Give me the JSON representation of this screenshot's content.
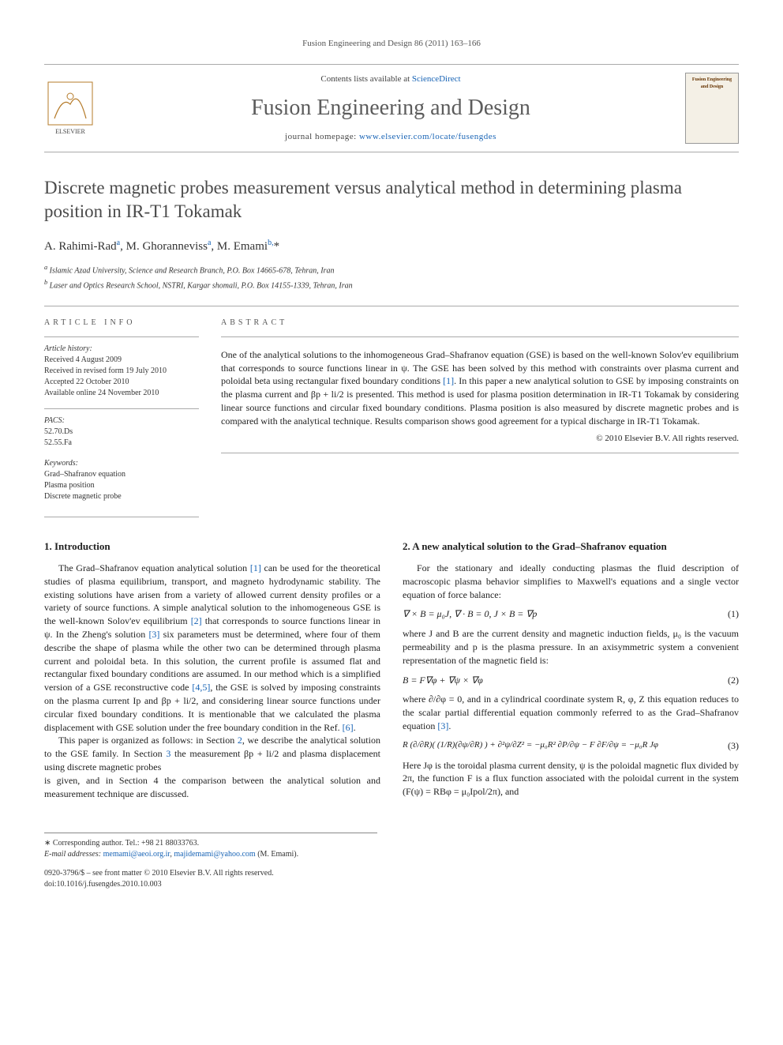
{
  "running_head": "Fusion Engineering and Design 86 (2011) 163–166",
  "masthead": {
    "contents_prefix": "Contents lists available at ",
    "contents_link": "ScienceDirect",
    "journal": "Fusion Engineering and Design",
    "homepage_prefix": "journal homepage: ",
    "homepage_link": "www.elsevier.com/locate/fusengdes",
    "publisher_logo_label": "ELSEVIER",
    "cover_title": "Fusion Engineering and Design"
  },
  "title": "Discrete magnetic probes measurement versus analytical method in determining plasma position in IR-T1 Tokamak",
  "authors_html": "A. Rahimi-Rad<sup class='author-link'>a</sup>, M. Ghoranneviss<sup class='author-link'>a</sup>, M. Emami<sup class='author-link'>b,</sup>*",
  "affiliations": {
    "a": "Islamic Azad University, Science and Research Branch, P.O. Box 14665-678, Tehran, Iran",
    "b": "Laser and Optics Research School, NSTRI, Kargar shomali, P.O. Box 14155-1339, Tehran, Iran"
  },
  "article_info": {
    "head": "ARTICLE INFO",
    "history_label": "Article history:",
    "history": [
      "Received 4 August 2009",
      "Received in revised form 19 July 2010",
      "Accepted 22 October 2010",
      "Available online 24 November 2010"
    ],
    "pacs_label": "PACS:",
    "pacs": [
      "52.70.Ds",
      "52.55.Fa"
    ],
    "keywords_label": "Keywords:",
    "keywords": [
      "Grad–Shafranov equation",
      "Plasma position",
      "Discrete magnetic probe"
    ]
  },
  "abstract": {
    "head": "ABSTRACT",
    "text": "One of the analytical solutions to the inhomogeneous Grad–Shafranov equation (GSE) is based on the well-known Solov'ev equilibrium that corresponds to source functions linear in ψ. The GSE has been solved by this method with constraints over plasma current and poloidal beta using rectangular fixed boundary conditions [1]. In this paper a new analytical solution to GSE by imposing constraints on the plasma current and βp + li/2 is presented. This method is used for plasma position determination in IR-T1 Tokamak by considering linear source functions and circular fixed boundary conditions. Plasma position is also measured by discrete magnetic probes and is compared with the analytical technique. Results comparison shows good agreement for a typical discharge in IR-T1 Tokamak.",
    "copyright": "© 2010 Elsevier B.V. All rights reserved.",
    "ref1": "[1]"
  },
  "sections": {
    "s1": {
      "heading": "1.  Introduction",
      "p1a": "The Grad–Shafranov equation analytical solution ",
      "p1_ref1": "[1]",
      "p1b": " can be used for the theoretical studies of plasma equilibrium, transport, and magneto hydrodynamic stability. The existing solutions have arisen from a variety of allowed current density profiles or a variety of source functions. A simple analytical solution to the inhomogeneous GSE is the well-known Solov'ev equilibrium ",
      "p1_ref2": "[2]",
      "p1c": " that corresponds to source functions linear in ψ. In the Zheng's solution ",
      "p1_ref3": "[3]",
      "p1d": " six parameters must be determined, where four of them describe the shape of plasma while the other two can be determined through plasma current and poloidal beta. In this solution, the current profile is assumed flat and rectangular fixed boundary conditions are assumed. In our method which is a simplified version of a GSE reconstructive code ",
      "p1_ref45": "[4,5]",
      "p1e": ", the GSE is solved by imposing constraints on the plasma current Ip and βp + li/2, and considering linear source functions under circular fixed boundary conditions. It is mentionable that we calculated the plasma displacement with GSE solution under the free boundary condition in the Ref. ",
      "p1_ref6": "[6]",
      "p1f": ".",
      "p2a": "This paper is organized as follows: in Section ",
      "p2_ref_s2": "2",
      "p2b": ", we describe the analytical solution to the GSE family. In Section ",
      "p2_ref_s3": "3",
      "p2c": " the measurement βp + li/2 and plasma displacement using discrete magnetic probes",
      "p3": "is given, and in Section 4 the comparison between the analytical solution and measurement technique are discussed."
    },
    "s2": {
      "heading": "2.  A new analytical solution to the Grad–Shafranov equation",
      "p1": "For the stationary and ideally conducting plasmas the fluid description of macroscopic plasma behavior simplifies to Maxwell's equations and a single vector equation of force balance:",
      "eq1": "∇ × B = μ₀J,      ∇ · B = 0,      J × B = ∇p",
      "eq1n": "(1)",
      "p2": "where J and B are the current density and magnetic induction fields, μ₀ is the vacuum permeability and p is the plasma pressure. In an axisymmetric system a convenient representation of the magnetic field is:",
      "eq2": "B = F∇φ + ∇ψ × ∇φ",
      "eq2n": "(2)",
      "p3a": "where ∂/∂φ = 0, and in a cylindrical coordinate system R, φ, Z this equation reduces to the scalar partial differential equation commonly referred to as the Grad–Shafranov equation ",
      "p3_ref3": "[3]",
      "p3b": ".",
      "eq3": "R (∂/∂R)( (1/R)(∂ψ/∂R) ) + ∂²ψ/∂Z² = −μ₀R² ∂P/∂ψ − F ∂F/∂ψ = −μ₀R Jφ",
      "eq3n": "(3)",
      "p4": "Here Jφ is the toroidal plasma current density, ψ is the poloidal magnetic flux divided by 2π, the function F is a flux function associated with the poloidal current in the system (F(ψ) = RBφ = μ₀Ipol/2π), and"
    }
  },
  "footer": {
    "corr_label": "∗ Corresponding author. Tel.: +98 21 88033763.",
    "email_label": "E-mail addresses:",
    "email1": "memami@aeoi.org.ir",
    "email_sep": ", ",
    "email2": "majidemami@yahoo.com",
    "email_tail": " (M. Emami).",
    "issn_line": "0920-3796/$ – see front matter © 2010 Elsevier B.V. All rights reserved.",
    "doi_line": "doi:10.1016/j.fusengdes.2010.10.003"
  },
  "colors": {
    "link": "#1763b5",
    "rule": "#aaaaaa",
    "heading_gray": "#4a4a4a"
  }
}
